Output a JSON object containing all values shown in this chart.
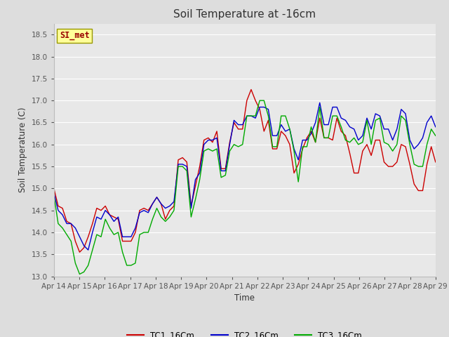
{
  "title": "Soil Temperature at -16cm",
  "xlabel": "Time",
  "ylabel": "Soil Temperature (C)",
  "ylim": [
    13.0,
    18.75
  ],
  "yticks": [
    13.0,
    13.5,
    14.0,
    14.5,
    15.0,
    15.5,
    16.0,
    16.5,
    17.0,
    17.5,
    18.0,
    18.5
  ],
  "x_labels": [
    "Apr 14",
    "Apr 15",
    "Apr 16",
    "Apr 17",
    "Apr 18",
    "Apr 19",
    "Apr 20",
    "Apr 21",
    "Apr 22",
    "Apr 23",
    "Apr 24",
    "Apr 25",
    "Apr 26",
    "Apr 27",
    "Apr 28",
    "Apr 29"
  ],
  "fig_bg_color": "#dddddd",
  "plot_bg_color": "#e8e8e8",
  "grid_color": "#ffffff",
  "legend_label": "SI_met",
  "legend_box_facecolor": "#ffff99",
  "legend_box_edgecolor": "#999900",
  "legend_text_color": "#990000",
  "series": {
    "TC1_16Cm": {
      "color": "#cc0000",
      "data": [
        15.0,
        14.6,
        14.55,
        14.25,
        14.2,
        13.8,
        13.55,
        13.65,
        13.9,
        14.2,
        14.55,
        14.5,
        14.6,
        14.4,
        14.35,
        14.3,
        13.8,
        13.8,
        13.8,
        14.0,
        14.5,
        14.55,
        14.5,
        14.65,
        14.8,
        14.65,
        14.3,
        14.5,
        14.6,
        15.65,
        15.7,
        15.6,
        14.6,
        15.05,
        15.5,
        16.1,
        16.15,
        16.05,
        16.3,
        15.45,
        15.45,
        16.05,
        16.5,
        16.35,
        16.35,
        17.0,
        17.25,
        17.0,
        16.8,
        16.3,
        16.55,
        15.9,
        15.9,
        16.3,
        16.2,
        16.0,
        15.35,
        15.55,
        15.9,
        16.15,
        16.3,
        16.05,
        16.6,
        16.15,
        16.15,
        16.1,
        16.6,
        16.3,
        16.2,
        15.8,
        15.35,
        15.35,
        15.85,
        16.0,
        15.75,
        16.1,
        16.1,
        15.6,
        15.5,
        15.5,
        15.6,
        16.0,
        15.95,
        15.55,
        15.1,
        14.95,
        14.95,
        15.55,
        15.95,
        15.6
      ]
    },
    "TC2_16Cm": {
      "color": "#0000cc",
      "data": [
        14.9,
        14.5,
        14.4,
        14.2,
        14.2,
        14.1,
        13.9,
        13.7,
        13.6,
        14.0,
        14.35,
        14.3,
        14.5,
        14.4,
        14.25,
        14.35,
        13.9,
        13.9,
        13.9,
        14.1,
        14.45,
        14.5,
        14.45,
        14.65,
        14.8,
        14.65,
        14.55,
        14.6,
        14.7,
        15.55,
        15.55,
        15.5,
        14.55,
        15.2,
        15.35,
        16.0,
        16.1,
        16.1,
        16.15,
        15.4,
        15.4,
        16.0,
        16.55,
        16.45,
        16.45,
        16.65,
        16.65,
        16.6,
        16.85,
        16.85,
        16.8,
        16.2,
        16.2,
        16.45,
        16.3,
        16.35,
        15.9,
        15.65,
        16.1,
        16.1,
        16.25,
        16.5,
        16.95,
        16.45,
        16.45,
        16.85,
        16.85,
        16.6,
        16.55,
        16.4,
        16.35,
        16.1,
        16.2,
        16.6,
        16.35,
        16.7,
        16.65,
        16.35,
        16.35,
        16.1,
        16.35,
        16.8,
        16.7,
        16.1,
        15.9,
        16.0,
        16.15,
        16.5,
        16.65,
        16.4
      ]
    },
    "TC3_16Cm": {
      "color": "#00aa00",
      "data": [
        14.85,
        14.2,
        14.1,
        13.95,
        13.8,
        13.3,
        13.05,
        13.1,
        13.25,
        13.6,
        13.95,
        13.9,
        14.3,
        14.1,
        13.95,
        14.0,
        13.55,
        13.25,
        13.25,
        13.3,
        13.95,
        14.0,
        14.0,
        14.3,
        14.55,
        14.35,
        14.25,
        14.35,
        14.5,
        15.5,
        15.5,
        15.4,
        14.35,
        14.75,
        15.2,
        15.85,
        15.9,
        15.85,
        15.9,
        15.25,
        15.3,
        15.85,
        16.0,
        15.95,
        16.0,
        16.65,
        16.65,
        16.65,
        17.0,
        17.0,
        16.65,
        15.95,
        15.95,
        16.65,
        16.65,
        16.35,
        15.85,
        15.15,
        15.95,
        15.95,
        16.4,
        16.05,
        16.85,
        16.15,
        16.15,
        16.65,
        16.65,
        16.4,
        16.1,
        16.05,
        16.15,
        16.0,
        16.05,
        16.55,
        16.0,
        16.55,
        16.6,
        16.05,
        16.0,
        15.85,
        16.0,
        16.65,
        16.55,
        16.0,
        15.55,
        15.5,
        15.5,
        16.0,
        16.35,
        16.2
      ]
    }
  },
  "n_points": 90,
  "days_count": 15
}
